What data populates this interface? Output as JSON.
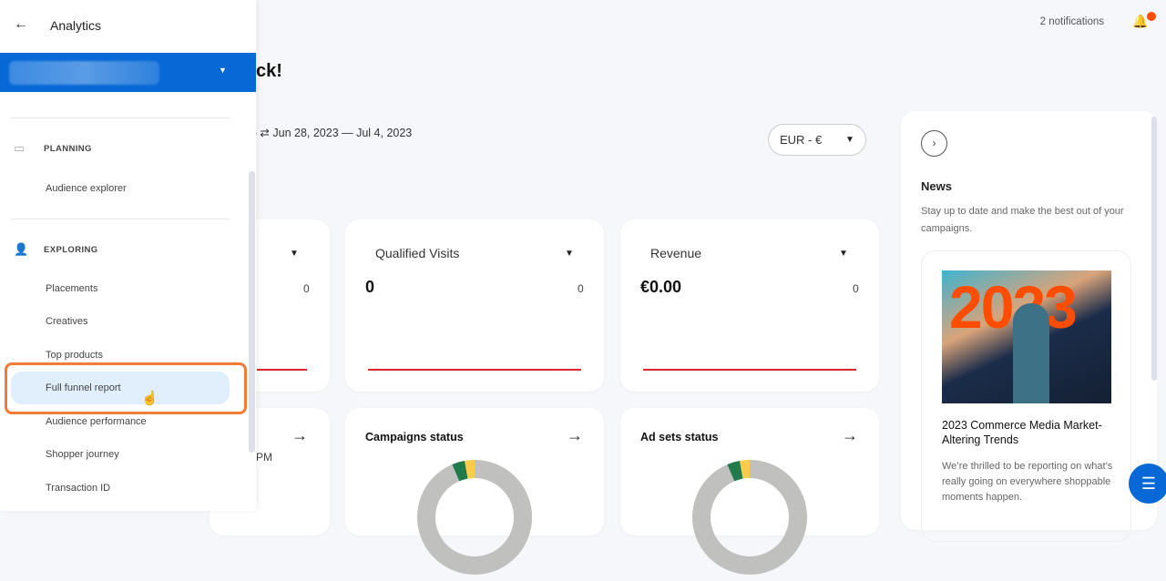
{
  "sidebar": {
    "title": "Analytics",
    "sections": [
      {
        "label": "PLANNING",
        "icon": "calendar-icon",
        "items": [
          "Audience explorer"
        ]
      },
      {
        "label": "EXPLORING",
        "icon": "person-search-icon",
        "items": [
          "Placements",
          "Creatives",
          "Top products",
          "Full funnel report",
          "Audience performance",
          "Shopper journey",
          "Transaction ID"
        ]
      }
    ],
    "active_item": "Full funnel report"
  },
  "header": {
    "notifications": "2 notifications",
    "greeting_partial": "ck!",
    "date_range_partial": "5 ⇄ Jun 28, 2023 — Jul 4, 2023",
    "currency": "EUR - €"
  },
  "metrics": [
    {
      "label": "",
      "value": "",
      "compare": "0"
    },
    {
      "label": "Qualified Visits",
      "value": "0",
      "compare": "0"
    },
    {
      "label": "Revenue",
      "value": "€0.00",
      "compare": "0"
    }
  ],
  "status_cards": [
    {
      "title": "",
      "subtitle_partial": "PM"
    },
    {
      "title": "Campaigns status"
    },
    {
      "title": "Ad sets status"
    }
  ],
  "donut_colors": {
    "other": "#c0c1bf",
    "green": "#217a4c",
    "yellow": "#fdcd4a"
  },
  "news": {
    "title": "News",
    "description": "Stay up to date and make the best out of your campaigns.",
    "article": {
      "image_text": "2023",
      "title": "2023 Commerce Media Market-Altering Trends",
      "body": "We’re thrilled to be reporting on what’s really going on everywhere shoppable moments happen."
    }
  },
  "colors": {
    "accent": "#0768d6",
    "highlight": "#f47a35",
    "badge": "#ff4d00"
  }
}
